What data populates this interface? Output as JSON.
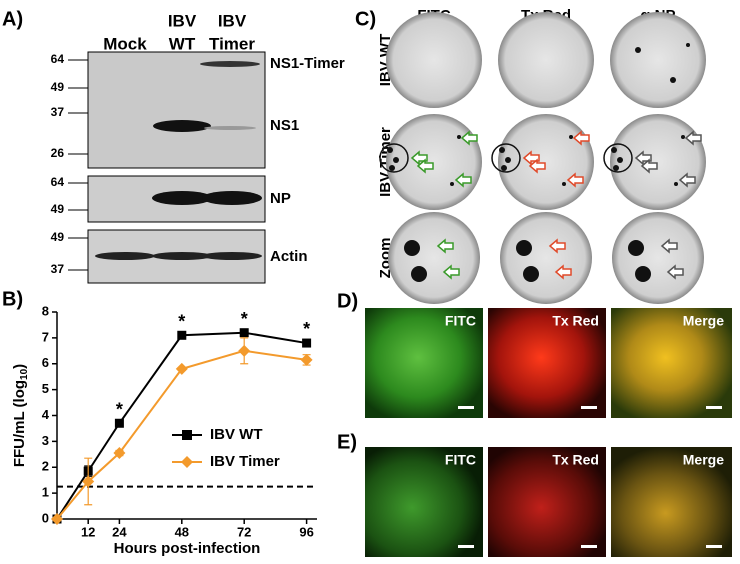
{
  "panel_a": {
    "label": "A)",
    "lanes": [
      [
        "Mock"
      ],
      [
        "IBV",
        "WT"
      ],
      [
        "IBV",
        "Timer"
      ]
    ],
    "markers": [
      [
        "64",
        "49",
        "37",
        "26"
      ],
      [
        "64",
        "49"
      ],
      [
        "49",
        "37"
      ]
    ],
    "proteins": [
      "NS1-Timer",
      "NS1",
      "NP",
      "Actin"
    ]
  },
  "panel_c": {
    "label": "C)",
    "columns": [
      "FITC",
      "Tx Red",
      "α-NP"
    ],
    "rows": [
      "IBV WT",
      "IBV Timer",
      "Zoom"
    ]
  },
  "panel_d": {
    "label": "D)",
    "columns": [
      "FITC",
      "Tx Red",
      "Merge"
    ]
  },
  "panel_e": {
    "label": "E)",
    "columns": [
      "FITC",
      "Tx Red",
      "Merge"
    ]
  },
  "chart_data": {
    "type": "line",
    "label": "B)",
    "x_label": "Hours post-infection",
    "y_label": "FFU/mL (log",
    "y_label_sub": "10",
    "y_label_end": ")",
    "x": [
      0,
      12,
      24,
      48,
      72,
      96
    ],
    "series": [
      {
        "name": "IBV WT",
        "color": "#000000",
        "marker": "square",
        "values": [
          0,
          1.85,
          3.7,
          7.1,
          7.2,
          6.8
        ],
        "errors": [
          0,
          0.2,
          0.1,
          0.1,
          0.1,
          0.1
        ]
      },
      {
        "name": "IBV Timer",
        "color": "#f39a2c",
        "marker": "diamond",
        "values": [
          0,
          1.45,
          2.55,
          5.8,
          6.5,
          6.15
        ],
        "errors": [
          0,
          0.9,
          0.1,
          0.05,
          0.5,
          0.2
        ]
      }
    ],
    "threshold": 1.25,
    "annotations": [
      {
        "x": 24,
        "text": "*"
      },
      {
        "x": 48,
        "text": "*"
      },
      {
        "x": 72,
        "text": "*"
      },
      {
        "x": 96,
        "text": "*"
      }
    ],
    "xlim": [
      0,
      100
    ],
    "xticks": [
      12,
      24,
      48,
      72,
      96
    ],
    "ylim": [
      0,
      8
    ],
    "yticks": [
      0,
      1,
      2,
      3,
      4,
      5,
      6,
      7,
      8
    ]
  }
}
